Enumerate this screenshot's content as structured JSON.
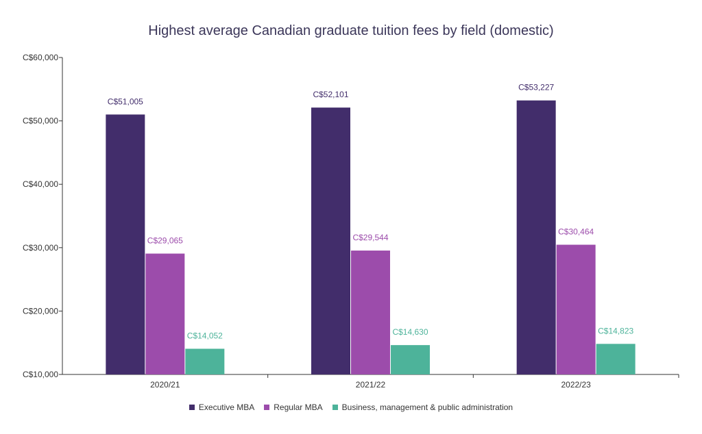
{
  "chart_data": {
    "type": "bar",
    "title": "Highest average Canadian graduate tuition fees by field (domestic)",
    "xlabel": "",
    "ylabel": "",
    "categories": [
      "2020/21",
      "2021/22",
      "2022/23"
    ],
    "ylim": [
      10000,
      60000
    ],
    "yticks": [
      10000,
      20000,
      30000,
      40000,
      50000,
      60000
    ],
    "ytick_labels": [
      "C$10,000",
      "C$20,000",
      "C$30,000",
      "C$40,000",
      "C$50,000",
      "C$60,000"
    ],
    "grid": false,
    "legend_position": "bottom",
    "series": [
      {
        "name": "Executive MBA",
        "color": "#422d6b",
        "values": [
          51005,
          52101,
          53227
        ],
        "labels": [
          "C$51,005",
          "C$52,101",
          "C$53,227"
        ]
      },
      {
        "name": "Regular MBA",
        "color": "#9c4cab",
        "values": [
          29065,
          29544,
          30464
        ],
        "labels": [
          "C$29,065",
          "C$29,544",
          "C$30,464"
        ]
      },
      {
        "name": "Business, management & public administration",
        "color": "#4db39a",
        "values": [
          14052,
          14630,
          14823
        ],
        "labels": [
          "C$14,052",
          "C$14,630",
          "C$14,823"
        ]
      }
    ]
  }
}
